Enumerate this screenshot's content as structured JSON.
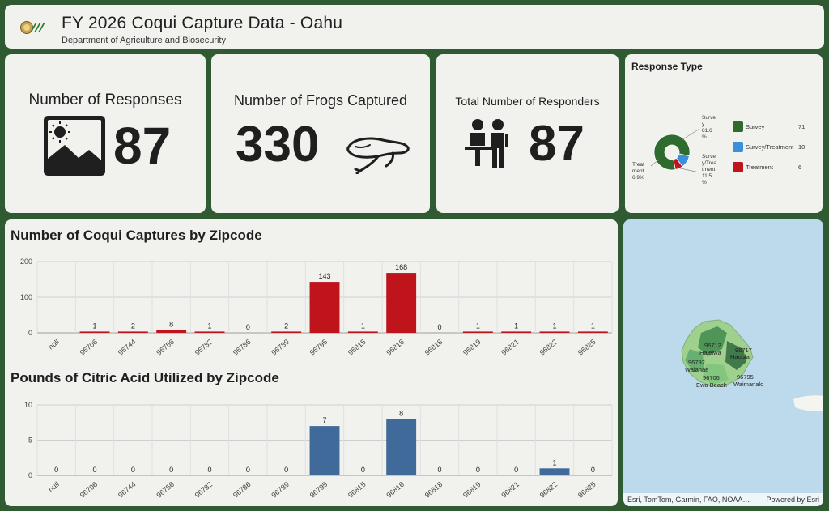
{
  "header": {
    "title": "FY 2026 Coqui Capture Data - Oahu",
    "subtitle": "Department of Agriculture and Biosecurity"
  },
  "indicators": {
    "responses": {
      "label": "Number of Responses",
      "value": "87",
      "icon": "image-icon"
    },
    "frogs": {
      "label": "Number of Frogs Captured",
      "value": "330",
      "icon": "frog-icon"
    },
    "responders": {
      "label": "Total Number of Responders",
      "value": "87",
      "icon": "people-icon"
    }
  },
  "response_type": {
    "title": "Response Type",
    "slice_labels": [
      {
        "lines": [
          "Surve",
          "y",
          "81.6",
          "%"
        ]
      },
      {
        "lines": [
          "Surve",
          "y/Trea",
          "tment",
          "11.5",
          "%"
        ]
      },
      {
        "lines": [
          "Treat",
          "ment",
          "6.9%"
        ]
      }
    ],
    "legend": [
      {
        "label": "Survey",
        "value": "71",
        "color": "#2f6b2f"
      },
      {
        "label": "Survey/Treatment",
        "value": "10",
        "color": "#3b8fdc"
      },
      {
        "label": "Treatment",
        "value": "6",
        "color": "#c0141c"
      }
    ]
  },
  "chart_data": [
    {
      "type": "bar",
      "title": "Number of Coqui Captures by Zipcode",
      "categories": [
        "null",
        "96706",
        "96744",
        "96756",
        "96782",
        "96786",
        "96789",
        "96795",
        "96815",
        "96816",
        "96818",
        "96819",
        "96821",
        "96822",
        "96825"
      ],
      "values": [
        0,
        1,
        2,
        8,
        1,
        0,
        2,
        143,
        1,
        168,
        0,
        1,
        1,
        1,
        1
      ],
      "data_labels": [
        "",
        "1",
        "2",
        "8",
        "1",
        "0",
        "2",
        "143",
        "1",
        "168",
        "0",
        "1",
        "1",
        "1",
        "1"
      ],
      "yticks": [
        "0",
        "100",
        "200"
      ],
      "ylim": [
        0,
        200
      ],
      "color": "#c0141c",
      "grid": true
    },
    {
      "type": "bar",
      "title": "Pounds of Citric Acid Utilized by Zipcode",
      "categories": [
        "null",
        "96706",
        "96744",
        "96756",
        "96782",
        "96786",
        "96789",
        "96795",
        "96815",
        "96816",
        "96818",
        "96819",
        "96821",
        "96822",
        "96825"
      ],
      "values": [
        0,
        0,
        0,
        0,
        0,
        0,
        0,
        7,
        0,
        8,
        0,
        0,
        0,
        1,
        0
      ],
      "data_labels": [
        "0",
        "0",
        "0",
        "0",
        "0",
        "0",
        "0",
        "7",
        "0",
        "8",
        "0",
        "0",
        "0",
        "1",
        "0"
      ],
      "yticks": [
        "0",
        "5",
        "10"
      ],
      "ylim": [
        0,
        10
      ],
      "color": "#3f6a99",
      "grid": true
    }
  ],
  "map": {
    "places": [
      "96712",
      "Haleiwa",
      "96717",
      "Hauula",
      "96792",
      "Waianae",
      "96706",
      "Ewa Beach",
      "96795",
      "Waimanalo"
    ],
    "attribution": "Esri, TomTom, Garmin, FAO, NOAA…",
    "powered_by": "Powered by Esri"
  }
}
